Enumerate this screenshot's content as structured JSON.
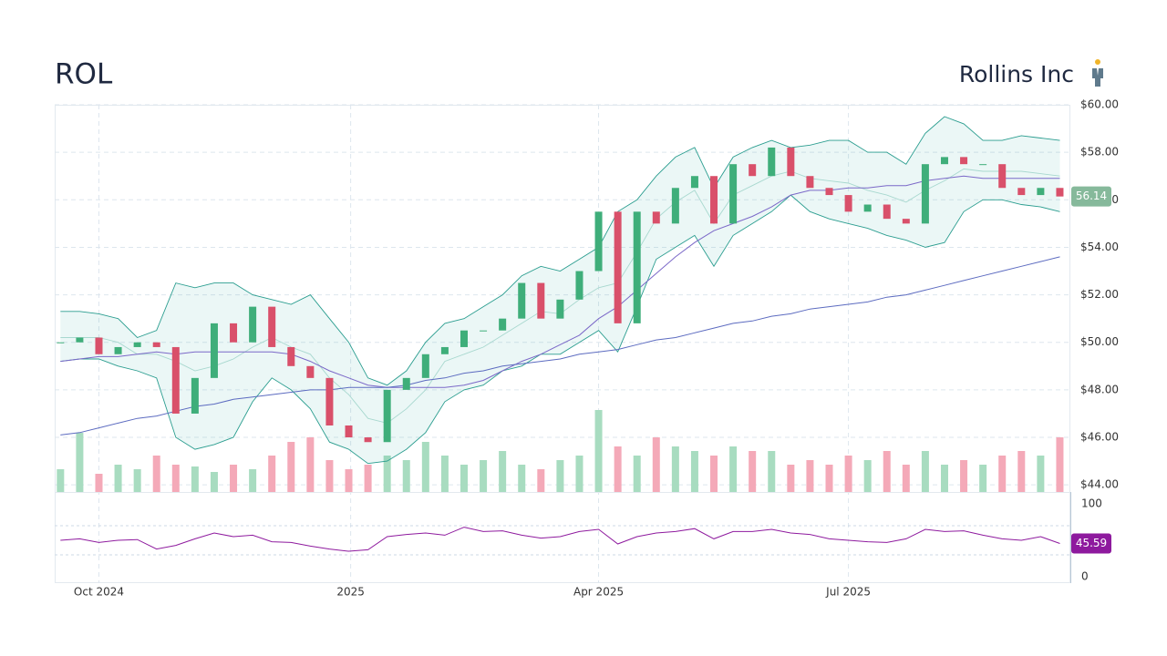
{
  "header": {
    "symbol": "ROL",
    "company": "Rollins Inc"
  },
  "chart_data": [
    {
      "type": "candlestick",
      "values": [
        50.0,
        50.2,
        49.5,
        49.8,
        50.0,
        49.8,
        47.0,
        48.5,
        50.8,
        50.0,
        51.5,
        49.8,
        49.0,
        48.5,
        46.5,
        46.0,
        45.8,
        48.0,
        48.5,
        49.5,
        49.8,
        50.5,
        50.5,
        51.0,
        52.5,
        51.0,
        51.8,
        53.0,
        55.5,
        50.8,
        55.5,
        55.0,
        56.5,
        57.0,
        55.0,
        57.5,
        57.0,
        58.2,
        57.0,
        56.5,
        56.2,
        55.5,
        55.8,
        55.2,
        55.0,
        57.5,
        57.8,
        57.5,
        57.5,
        56.5,
        56.2,
        56.5,
        56.14
      ],
      "color_up": "#3fae7a",
      "color_down": "#d9506a",
      "last_label_color": "#86b99b",
      "bands": {
        "color": "#2a9d8f",
        "fill": "rgba(38,166,154,0.09)",
        "middle_color": "#a8d8cf",
        "upper": [
          51.3,
          51.3,
          51.2,
          51.0,
          50.2,
          50.5,
          52.5,
          52.3,
          52.5,
          52.5,
          52.0,
          51.8,
          51.6,
          52.0,
          51.0,
          50.0,
          48.5,
          48.2,
          48.8,
          50.0,
          50.8,
          51.0,
          51.5,
          52.0,
          52.8,
          53.2,
          53.0,
          53.5,
          54.0,
          55.5,
          56.0,
          57.0,
          57.8,
          58.2,
          56.5,
          57.8,
          58.2,
          58.5,
          58.2,
          58.3,
          58.5,
          58.5,
          58.0,
          58.0,
          57.5,
          58.8,
          59.5,
          59.2,
          58.5,
          58.5,
          58.7,
          58.6,
          58.5
        ],
        "middle": [
          50.2,
          50.2,
          50.2,
          50.0,
          49.5,
          49.5,
          49.2,
          48.8,
          49.0,
          49.3,
          49.8,
          50.2,
          49.8,
          49.5,
          48.5,
          47.8,
          46.8,
          46.6,
          47.2,
          48.0,
          49.2,
          49.5,
          49.8,
          50.3,
          50.8,
          51.3,
          51.2,
          51.8,
          52.3,
          52.5,
          53.8,
          55.2,
          55.9,
          56.4,
          55.0,
          56.2,
          56.6,
          57.0,
          57.2,
          56.9,
          56.8,
          56.7,
          56.4,
          56.2,
          55.9,
          56.4,
          56.8,
          57.3,
          57.2,
          57.2,
          57.2,
          57.1,
          57.0
        ],
        "lower": [
          49.2,
          49.3,
          49.3,
          49.0,
          48.8,
          48.5,
          46.0,
          45.5,
          45.7,
          46.0,
          47.5,
          48.5,
          48.0,
          47.2,
          45.8,
          45.5,
          44.9,
          45.0,
          45.5,
          46.2,
          47.5,
          48.0,
          48.2,
          48.8,
          49.0,
          49.5,
          49.5,
          50.0,
          50.5,
          49.6,
          51.5,
          53.5,
          54.0,
          54.5,
          53.2,
          54.5,
          55.0,
          55.5,
          56.2,
          55.5,
          55.2,
          55.0,
          54.8,
          54.5,
          54.3,
          54.0,
          54.2,
          55.5,
          56.0,
          56.0,
          55.8,
          55.7,
          55.5
        ]
      },
      "series": [
        {
          "color": "#7b68c8",
          "values": [
            49.2,
            49.3,
            49.4,
            49.4,
            49.5,
            49.6,
            49.5,
            49.6,
            49.6,
            49.6,
            49.6,
            49.6,
            49.5,
            49.2,
            48.8,
            48.5,
            48.2,
            48.1,
            48.1,
            48.1,
            48.1,
            48.2,
            48.4,
            48.8,
            49.2,
            49.5,
            49.9,
            50.3,
            51.0,
            51.5,
            52.2,
            52.9,
            53.6,
            54.2,
            54.7,
            55.0,
            55.3,
            55.7,
            56.2,
            56.4,
            56.4,
            56.5,
            56.5,
            56.6,
            56.6,
            56.8,
            56.9,
            57.0,
            56.9,
            56.9,
            56.9,
            56.9,
            56.9
          ]
        },
        {
          "color": "#5c6bc0",
          "values": [
            46.1,
            46.2,
            46.4,
            46.6,
            46.8,
            46.9,
            47.1,
            47.3,
            47.4,
            47.6,
            47.7,
            47.8,
            47.9,
            48.0,
            48.0,
            48.1,
            48.1,
            48.1,
            48.2,
            48.4,
            48.5,
            48.7,
            48.8,
            49.0,
            49.1,
            49.2,
            49.3,
            49.5,
            49.6,
            49.7,
            49.9,
            50.1,
            50.2,
            50.4,
            50.6,
            50.8,
            50.9,
            51.1,
            51.2,
            51.4,
            51.5,
            51.6,
            51.7,
            51.9,
            52.0,
            52.2,
            52.4,
            52.6,
            52.8,
            53.0,
            53.2,
            53.4,
            53.6
          ]
        }
      ],
      "ylim": [
        43.7,
        60
      ],
      "yticks": [
        {
          "value": 44,
          "label": "$44.00"
        },
        {
          "value": 46,
          "label": "$46.00"
        },
        {
          "value": 48,
          "label": "$48.00"
        },
        {
          "value": 50,
          "label": "$50.00"
        },
        {
          "value": 52,
          "label": "$52.00"
        },
        {
          "value": 54,
          "label": "$54.00"
        },
        {
          "value": 56,
          "label": "$56.00"
        },
        {
          "value": 58,
          "label": "$58.00"
        },
        {
          "value": 60,
          "label": "$60.00"
        }
      ],
      "xlim": [
        -0.3,
        52.5
      ],
      "xticks": [
        {
          "value": 2.0,
          "label": "Oct 2024"
        },
        {
          "value": 15.1,
          "label": "2025"
        },
        {
          "value": 28.0,
          "label": "Apr 2025"
        },
        {
          "value": 41.0,
          "label": "Jul 2025"
        }
      ],
      "grid": true
    },
    {
      "type": "volume",
      "values": [
        25,
        65,
        20,
        30,
        25,
        40,
        30,
        28,
        22,
        30,
        25,
        40,
        55,
        60,
        35,
        25,
        30,
        40,
        35,
        55,
        40,
        30,
        35,
        45,
        30,
        25,
        35,
        40,
        90,
        50,
        40,
        60,
        50,
        45,
        40,
        50,
        45,
        45,
        30,
        35,
        30,
        40,
        35,
        45,
        30,
        45,
        30,
        35,
        30,
        40,
        45,
        40,
        60
      ],
      "color_up": "#a8dcc0",
      "color_down": "#f4a9b8",
      "ylim": [
        0,
        100
      ]
    },
    {
      "type": "line",
      "values": [
        50,
        52,
        47,
        50,
        51,
        38,
        43,
        52,
        60,
        55,
        57,
        48,
        47,
        42,
        38,
        35,
        37,
        55,
        58,
        60,
        57,
        68,
        62,
        63,
        57,
        53,
        55,
        62,
        65,
        45,
        55,
        60,
        62,
        66,
        52,
        62,
        62,
        65,
        60,
        58,
        52,
        50,
        48,
        47,
        52,
        65,
        62,
        63,
        57,
        52,
        50,
        55,
        45.59
      ],
      "color": "#8e1a9e",
      "levels": [
        30,
        70
      ],
      "ylim": [
        0,
        100
      ],
      "yticks": [
        0,
        100
      ]
    }
  ]
}
